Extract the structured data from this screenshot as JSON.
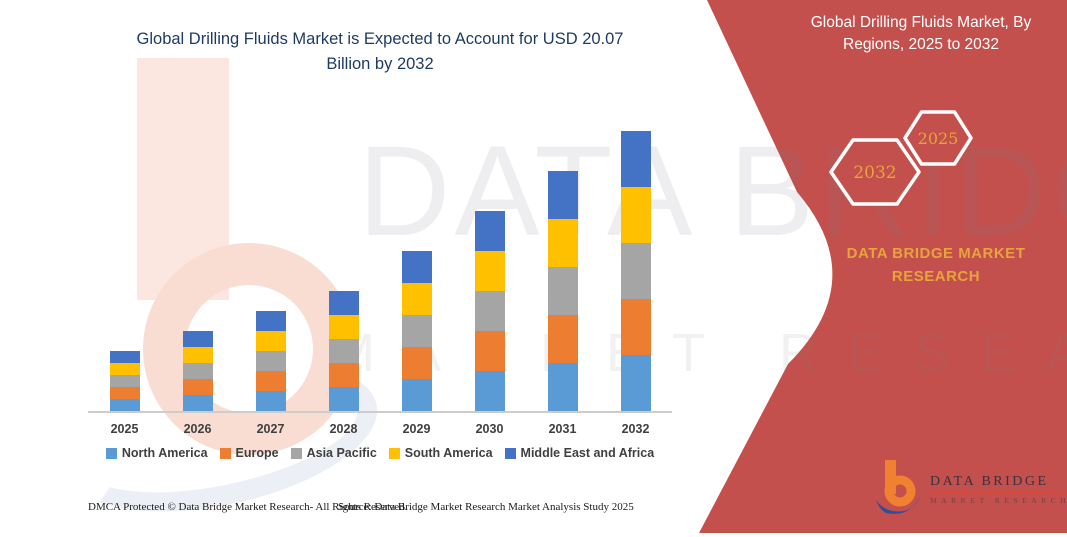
{
  "header": {
    "title": "Global Drilling Fluids Market is Expected to Account for USD 20.07 Billion by 2032"
  },
  "side_panel": {
    "bg_color": "#c3504c",
    "title_line1": "Global Drilling Fluids Market, By",
    "title_line2": "Regions, 2025 to 2032",
    "hexagon_left_year": "2032",
    "hexagon_right_year": "2025",
    "hexagon_text_color": "#e7a33c",
    "brand_caption": "DATA BRIDGE MARKET RESEARCH",
    "logo_name": "DATA BRIDGE",
    "logo_subtext": "MARKET RESEARCH"
  },
  "watermark": {
    "line1": "DATA BRIDGE",
    "line2": "MARKET RESEARCH"
  },
  "chart_data": {
    "type": "bar",
    "stacked": true,
    "unit": "USD Billion",
    "title": "Global Drilling Fluids Market, By Regions, 2025 to 2032",
    "categories": [
      "2025",
      "2026",
      "2027",
      "2028",
      "2029",
      "2030",
      "2031",
      "2032"
    ],
    "series": [
      {
        "name": "North America",
        "color": "#5b9bd5",
        "values": [
          0.89,
          1.18,
          1.46,
          1.75,
          2.29,
          2.87,
          3.43,
          4.01
        ]
      },
      {
        "name": "Europe",
        "color": "#ed7d31",
        "values": [
          0.89,
          1.18,
          1.46,
          1.75,
          2.29,
          2.87,
          3.43,
          4.01
        ]
      },
      {
        "name": "Asia Pacific",
        "color": "#a5a5a5",
        "values": [
          0.89,
          1.18,
          1.46,
          1.75,
          2.29,
          2.87,
          3.43,
          4.01
        ]
      },
      {
        "name": "South America",
        "color": "#ffc000",
        "values": [
          0.89,
          1.18,
          1.46,
          1.75,
          2.29,
          2.87,
          3.43,
          4.01
        ]
      },
      {
        "name": "Middle East and Africa",
        "color": "#4472c4",
        "values": [
          0.89,
          1.18,
          1.46,
          1.75,
          2.29,
          2.87,
          3.43,
          4.03
        ]
      }
    ],
    "totals": [
      4.45,
      5.9,
      7.3,
      8.75,
      11.45,
      14.35,
      17.15,
      20.07
    ],
    "ylim": [
      0,
      21
    ],
    "grid": false,
    "y_axis_visible": false,
    "legend_position": "bottom"
  },
  "footer": {
    "dmca": "DMCA Protected © Data Bridge Market Research-  All Rights Reserved.",
    "source": "Source: Data Bridge Market Research  Market Analysis Study 2025"
  }
}
